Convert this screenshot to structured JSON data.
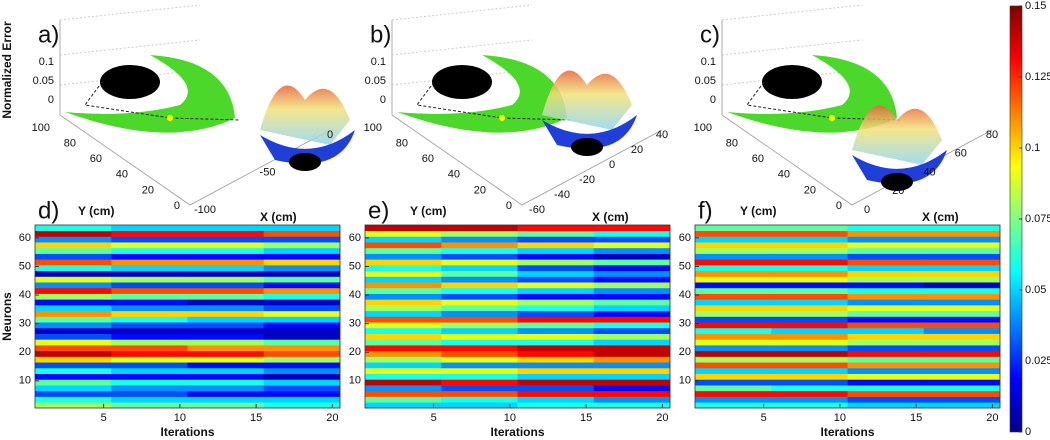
{
  "chart_data": [
    {
      "type": "surface3d",
      "panel": "a)",
      "z_label": "Normalized Error",
      "y_label": "Y (cm)",
      "x_label": "X (cm)",
      "zticks": [
        0,
        0.05,
        0.1
      ],
      "yticks": [
        100,
        80,
        60,
        40,
        20,
        0
      ],
      "xticks": [
        -100,
        -50,
        0
      ]
    },
    {
      "type": "surface3d",
      "panel": "b)",
      "y_label": "Y (cm)",
      "x_label": "X (cm)",
      "zticks": [
        0,
        0.05,
        0.1
      ],
      "yticks": [
        100,
        80,
        60,
        40,
        20,
        0
      ],
      "xticks": [
        -60,
        -40,
        -20,
        0,
        20,
        40
      ]
    },
    {
      "type": "surface3d",
      "panel": "c)",
      "y_label": "Y (cm)",
      "x_label": "X (cm)",
      "zticks": [
        0,
        0.05,
        0.1
      ],
      "yticks": [
        100,
        80,
        60,
        40,
        20,
        0
      ],
      "xticks": [
        0,
        20,
        40,
        60,
        80
      ]
    },
    {
      "type": "heatmap",
      "panel": "d)",
      "y_label": "Neurons",
      "x_label": "Iterations",
      "xlim": [
        0.5,
        20.5
      ],
      "ylim": [
        0.5,
        64.5
      ],
      "xticks": [
        5,
        10,
        15,
        20
      ],
      "yticks": [
        10,
        20,
        30,
        40,
        50,
        60
      ],
      "matrix": [
        [
          0.08,
          0.07,
          0.07,
          0.06
        ],
        [
          0.06,
          0.05,
          0.05,
          0.05
        ],
        [
          0.03,
          0.03,
          0.02,
          0.02
        ],
        [
          0.05,
          0.04,
          0.04,
          0.03
        ],
        [
          0.07,
          0.06,
          0.06,
          0.05
        ],
        [
          0.02,
          0.02,
          0.02,
          0.01
        ],
        [
          0.06,
          0.05,
          0.05,
          0.04
        ],
        [
          0.03,
          0.03,
          0.02,
          0.02
        ],
        [
          0.1,
          0.09,
          0.09,
          0.08
        ],
        [
          0.14,
          0.13,
          0.13,
          0.12
        ],
        [
          0.12,
          0.12,
          0.11,
          0.11
        ],
        [
          0.09,
          0.08,
          0.08,
          0.07
        ],
        [
          0.03,
          0.02,
          0.02,
          0.01
        ],
        [
          0.01,
          0.01,
          0.01,
          0.01
        ],
        [
          0.04,
          0.03,
          0.03,
          0.02
        ],
        [
          0.07,
          0.06,
          0.05,
          0.05
        ],
        [
          0.11,
          0.1,
          0.1,
          0.09
        ],
        [
          0.05,
          0.04,
          0.04,
          0.03
        ],
        [
          0.02,
          0.02,
          0.01,
          0.01
        ],
        [
          0.08,
          0.07,
          0.07,
          0.06
        ],
        [
          0.13,
          0.12,
          0.12,
          0.11
        ],
        [
          0.04,
          0.03,
          0.03,
          0.02
        ],
        [
          0.09,
          0.08,
          0.08,
          0.07
        ],
        [
          0.01,
          0.01,
          0.01,
          0.01
        ],
        [
          0.06,
          0.05,
          0.05,
          0.04
        ],
        [
          0.12,
          0.11,
          0.11,
          0.1
        ],
        [
          0.03,
          0.02,
          0.02,
          0.02
        ],
        [
          0.07,
          0.06,
          0.06,
          0.05
        ],
        [
          0.1,
          0.09,
          0.09,
          0.08
        ],
        [
          0.04,
          0.03,
          0.03,
          0.03
        ],
        [
          0.14,
          0.13,
          0.13,
          0.12
        ],
        [
          0.06,
          0.05,
          0.05,
          0.05
        ]
      ]
    },
    {
      "type": "heatmap",
      "panel": "e)",
      "x_label": "Iterations",
      "xlim": [
        0.5,
        20.5
      ],
      "ylim": [
        0.5,
        64.5
      ],
      "xticks": [
        5,
        10,
        15,
        20
      ],
      "yticks": [
        10,
        20,
        30,
        40,
        50,
        60
      ],
      "matrix": [
        [
          0.05,
          0.05,
          0.06,
          0.06
        ],
        [
          0.07,
          0.06,
          0.05,
          0.04
        ],
        [
          0.12,
          0.12,
          0.13,
          0.13
        ],
        [
          0.04,
          0.03,
          0.03,
          0.02
        ],
        [
          0.14,
          0.13,
          0.14,
          0.14
        ],
        [
          0.06,
          0.06,
          0.05,
          0.05
        ],
        [
          0.09,
          0.09,
          0.1,
          0.1
        ],
        [
          0.05,
          0.04,
          0.04,
          0.04
        ],
        [
          0.08,
          0.09,
          0.1,
          0.11
        ],
        [
          0.11,
          0.12,
          0.13,
          0.14
        ],
        [
          0.13,
          0.13,
          0.14,
          0.14
        ],
        [
          0.07,
          0.06,
          0.06,
          0.05
        ],
        [
          0.1,
          0.09,
          0.09,
          0.08
        ],
        [
          0.06,
          0.05,
          0.04,
          0.03
        ],
        [
          0.09,
          0.08,
          0.07,
          0.06
        ],
        [
          0.12,
          0.12,
          0.13,
          0.13
        ],
        [
          0.05,
          0.04,
          0.03,
          0.02
        ],
        [
          0.08,
          0.07,
          0.06,
          0.05
        ],
        [
          0.1,
          0.09,
          0.08,
          0.07
        ],
        [
          0.04,
          0.03,
          0.02,
          0.02
        ],
        [
          0.07,
          0.06,
          0.05,
          0.04
        ],
        [
          0.11,
          0.1,
          0.09,
          0.08
        ],
        [
          0.05,
          0.04,
          0.03,
          0.02
        ],
        [
          0.09,
          0.07,
          0.05,
          0.04
        ],
        [
          0.06,
          0.05,
          0.03,
          0.02
        ],
        [
          0.1,
          0.09,
          0.08,
          0.07
        ],
        [
          0.04,
          0.03,
          0.02,
          0.01
        ],
        [
          0.07,
          0.06,
          0.05,
          0.04
        ],
        [
          0.12,
          0.11,
          0.1,
          0.09
        ],
        [
          0.05,
          0.04,
          0.03,
          0.03
        ],
        [
          0.09,
          0.08,
          0.07,
          0.06
        ],
        [
          0.14,
          0.14,
          0.13,
          0.13
        ]
      ]
    },
    {
      "type": "heatmap",
      "panel": "f)",
      "x_label": "Iterations",
      "xlim": [
        0.5,
        20.5
      ],
      "ylim": [
        0.5,
        64.5
      ],
      "xticks": [
        5,
        10,
        15,
        20
      ],
      "yticks": [
        10,
        20,
        30,
        40,
        50,
        60
      ],
      "matrix": [
        [
          0.06,
          0.06,
          0.05,
          0.05
        ],
        [
          0.04,
          0.04,
          0.03,
          0.03
        ],
        [
          0.13,
          0.13,
          0.12,
          0.12
        ],
        [
          0.07,
          0.06,
          0.06,
          0.06
        ],
        [
          0.03,
          0.03,
          0.02,
          0.02
        ],
        [
          0.1,
          0.1,
          0.09,
          0.09
        ],
        [
          0.05,
          0.05,
          0.04,
          0.04
        ],
        [
          0.12,
          0.12,
          0.11,
          0.11
        ],
        [
          0.08,
          0.08,
          0.07,
          0.07
        ],
        [
          0.14,
          0.14,
          0.13,
          0.13
        ],
        [
          0.04,
          0.04,
          0.03,
          0.03
        ],
        [
          0.09,
          0.09,
          0.08,
          0.08
        ],
        [
          0.11,
          0.11,
          0.1,
          0.1
        ],
        [
          0.06,
          0.05,
          0.05,
          0.04
        ],
        [
          0.13,
          0.13,
          0.12,
          0.12
        ],
        [
          0.03,
          0.03,
          0.02,
          0.02
        ],
        [
          0.08,
          0.08,
          0.07,
          0.07
        ],
        [
          0.1,
          0.1,
          0.09,
          0.09
        ],
        [
          0.05,
          0.05,
          0.04,
          0.04
        ],
        [
          0.12,
          0.12,
          0.11,
          0.11
        ],
        [
          0.07,
          0.07,
          0.06,
          0.06
        ],
        [
          0.02,
          0.02,
          0.02,
          0.01
        ],
        [
          0.09,
          0.09,
          0.08,
          0.08
        ],
        [
          0.11,
          0.11,
          0.1,
          0.1
        ],
        [
          0.06,
          0.06,
          0.05,
          0.05
        ],
        [
          0.13,
          0.13,
          0.12,
          0.12
        ],
        [
          0.04,
          0.04,
          0.03,
          0.03
        ],
        [
          0.08,
          0.08,
          0.07,
          0.07
        ],
        [
          0.1,
          0.1,
          0.09,
          0.09
        ],
        [
          0.05,
          0.05,
          0.04,
          0.04
        ],
        [
          0.12,
          0.12,
          0.11,
          0.11
        ],
        [
          0.07,
          0.07,
          0.06,
          0.06
        ]
      ]
    },
    {
      "type": "colorbar",
      "lim": [
        0,
        0.15
      ],
      "ticks": [
        0,
        0.025,
        0.05,
        0.075,
        0.1,
        0.125,
        0.15
      ]
    }
  ]
}
